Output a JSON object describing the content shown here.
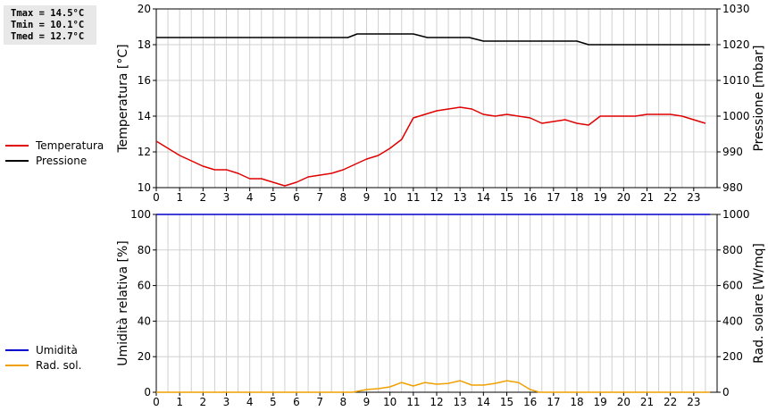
{
  "stats": {
    "tmax": "Tmax = 14.5°C",
    "tmin": "Tmin = 10.1°C",
    "tmed": "Tmed = 12.7°C"
  },
  "legend_top": [
    {
      "label": "Temperatura",
      "color": "#e00000"
    },
    {
      "label": "Pressione",
      "color": "#000000"
    }
  ],
  "legend_bottom": [
    {
      "label": "Umidità",
      "color": "#0000cc"
    },
    {
      "label": "Rad. sol.",
      "color": "#f0a000"
    }
  ],
  "chart_data": [
    {
      "type": "line",
      "xlabel": "",
      "xticks": [
        0,
        1,
        2,
        3,
        4,
        5,
        6,
        7,
        8,
        9,
        10,
        11,
        12,
        13,
        14,
        15,
        16,
        17,
        18,
        19,
        20,
        21,
        22,
        23
      ],
      "xlim": [
        0,
        24
      ],
      "ylabel": "Temperatura [°C]",
      "ylim": [
        10,
        20
      ],
      "yticks": [
        10,
        12,
        14,
        16,
        18,
        20
      ],
      "y2label": "Pressione [mbar]",
      "y2lim": [
        980,
        1030
      ],
      "y2ticks": [
        980,
        990,
        1000,
        1010,
        1020,
        1030
      ],
      "grid": true,
      "series": [
        {
          "name": "Temperatura",
          "axis": "left",
          "color": "#e00000",
          "x": [
            0,
            0.5,
            1,
            1.5,
            2,
            2.5,
            3,
            3.5,
            4,
            4.5,
            5,
            5.5,
            6,
            6.5,
            7,
            7.5,
            8,
            8.5,
            9,
            9.5,
            10,
            10.5,
            11,
            11.5,
            12,
            12.5,
            13,
            13.5,
            14,
            14.5,
            15,
            15.5,
            16,
            16.5,
            17,
            17.5,
            18,
            18.5,
            19,
            19.5,
            20,
            20.5,
            21,
            21.5,
            22,
            22.5,
            23,
            23.5
          ],
          "y": [
            12.6,
            12.2,
            11.8,
            11.5,
            11.2,
            11.0,
            11.0,
            10.8,
            10.5,
            10.5,
            10.3,
            10.1,
            10.3,
            10.6,
            10.7,
            10.8,
            11.0,
            11.3,
            11.6,
            11.8,
            12.2,
            12.7,
            13.9,
            14.1,
            14.3,
            14.4,
            14.5,
            14.4,
            14.1,
            14.0,
            14.1,
            14.0,
            13.9,
            13.6,
            13.7,
            13.8,
            13.6,
            13.5,
            14.0,
            14.0,
            14.0,
            14.0,
            14.1,
            14.1,
            14.1,
            14.0,
            13.8,
            13.6
          ]
        },
        {
          "name": "Pressione",
          "axis": "right",
          "color": "#000000",
          "x": [
            0,
            8.2,
            8.6,
            11.0,
            11.6,
            13.4,
            14.0,
            18.0,
            18.5,
            23.7
          ],
          "y": [
            1022,
            1022,
            1023,
            1023,
            1022,
            1022,
            1021,
            1021,
            1020,
            1020
          ]
        }
      ]
    },
    {
      "type": "line",
      "xlabel": "",
      "xticks": [
        0,
        1,
        2,
        3,
        4,
        5,
        6,
        7,
        8,
        9,
        10,
        11,
        12,
        13,
        14,
        15,
        16,
        17,
        18,
        19,
        20,
        21,
        22,
        23
      ],
      "xlim": [
        0,
        24
      ],
      "ylabel": "Umidità relativa [%]",
      "ylim": [
        0,
        100
      ],
      "yticks": [
        0,
        20,
        40,
        60,
        80,
        100
      ],
      "y2label": "Rad. solare [W/mq]",
      "y2lim": [
        0,
        1000
      ],
      "y2ticks": [
        0,
        200,
        400,
        600,
        800,
        1000
      ],
      "grid": true,
      "series": [
        {
          "name": "Umidità",
          "axis": "left",
          "color": "#0000cc",
          "x": [
            0,
            23.7
          ],
          "y": [
            100,
            100
          ]
        },
        {
          "name": "Rad. sol.",
          "axis": "right",
          "color": "#f0a000",
          "x": [
            0,
            8.4,
            9.0,
            9.5,
            10.0,
            10.5,
            11.0,
            11.5,
            12.0,
            12.5,
            13.0,
            13.5,
            14.0,
            14.5,
            15.0,
            15.5,
            16.0,
            16.4,
            17,
            18,
            19,
            20,
            21,
            22,
            23,
            23.7
          ],
          "y": [
            0,
            0,
            15,
            20,
            30,
            55,
            35,
            55,
            45,
            50,
            65,
            40,
            40,
            50,
            65,
            55,
            15,
            0,
            0,
            0,
            0,
            0,
            0,
            0,
            0,
            0
          ]
        }
      ]
    }
  ]
}
